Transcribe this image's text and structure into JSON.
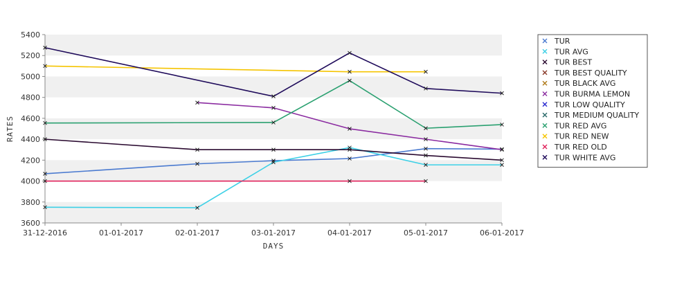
{
  "chart_data": {
    "type": "line",
    "title": "",
    "xlabel": "DAYS",
    "ylabel": "RATES",
    "categories": [
      "31-12-2016",
      "01-01-2017",
      "02-01-2017",
      "03-01-2017",
      "04-01-2017",
      "05-01-2017",
      "06-01-2017"
    ],
    "ylim": [
      3600,
      5400
    ],
    "yticks": [
      3600,
      3800,
      4000,
      4200,
      4400,
      4600,
      4800,
      5000,
      5200,
      5400
    ],
    "grid": "alternating horizontal bands",
    "legend_position": "right",
    "series": [
      {
        "name": "TUR",
        "color": "#4a7ad0",
        "values": [
          4070,
          null,
          4165,
          4195,
          4215,
          4310,
          4305
        ]
      },
      {
        "name": "TUR AVG",
        "color": "#3cd0e6",
        "values": [
          3750,
          null,
          3745,
          4180,
          4320,
          4155,
          4155
        ]
      },
      {
        "name": "TUR BEST",
        "color": "#2a0a30",
        "values": [
          4400,
          null,
          4300,
          4300,
          4300,
          4245,
          4200
        ]
      },
      {
        "name": "TUR BEST QUALITY",
        "color": "#8a3a2a",
        "values": [
          null,
          null,
          null,
          null,
          null,
          null,
          null
        ]
      },
      {
        "name": "TUR BLACK AVG",
        "color": "#b07a1a",
        "values": [
          null,
          null,
          null,
          null,
          null,
          null,
          null
        ]
      },
      {
        "name": "TUR BURMA LEMON",
        "color": "#8a2aa0",
        "values": [
          null,
          null,
          4750,
          4700,
          4500,
          4400,
          4300
        ]
      },
      {
        "name": "TUR LOW QUALITY",
        "color": "#2a2ad0",
        "values": [
          null,
          null,
          null,
          null,
          null,
          null,
          null
        ]
      },
      {
        "name": "TUR MEDIUM QUALITY",
        "color": "#2a6a6a",
        "values": [
          null,
          null,
          null,
          null,
          null,
          null,
          null
        ]
      },
      {
        "name": "TUR RED AVG",
        "color": "#2aa070",
        "values": [
          4555,
          null,
          null,
          4560,
          4960,
          4505,
          4540
        ]
      },
      {
        "name": "TUR RED NEW",
        "color": "#f5c400",
        "values": [
          5100,
          null,
          null,
          null,
          5045,
          5045,
          null
        ]
      },
      {
        "name": "TUR RED OLD",
        "color": "#e0205a",
        "values": [
          4000,
          null,
          null,
          null,
          4000,
          4000,
          null
        ]
      },
      {
        "name": "TUR WHITE AVG",
        "color": "#1e0a5a",
        "values": [
          5275,
          null,
          null,
          4810,
          5225,
          4885,
          4840
        ]
      }
    ]
  }
}
